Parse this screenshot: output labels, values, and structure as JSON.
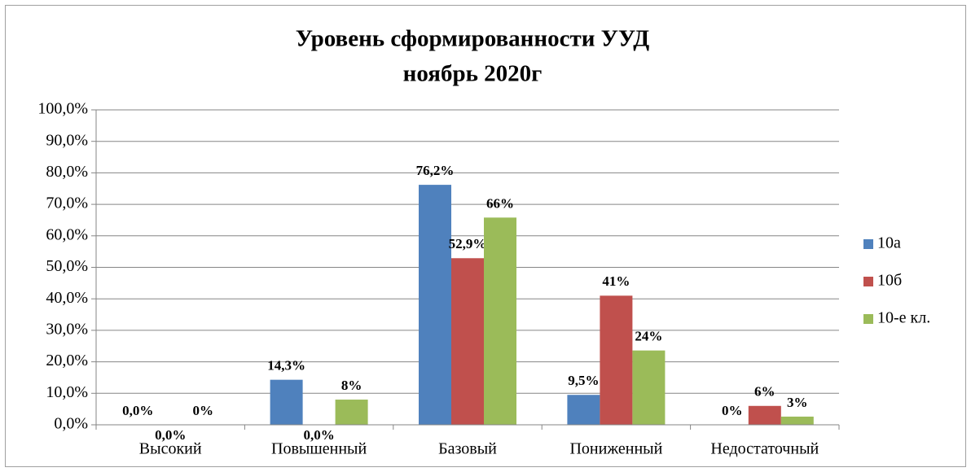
{
  "chart_data": {
    "type": "bar",
    "title": "Уровень сформированности УУД",
    "subtitle": "ноябрь 2020г",
    "categories": [
      "Высокий",
      "Повышенный",
      "Базовый",
      "Пониженный",
      "Недостаточный"
    ],
    "series": [
      {
        "name": "10а",
        "color": "#4f81bd",
        "values": [
          0,
          14.3,
          76.2,
          9.5,
          0
        ],
        "value_labels": [
          "0,0%",
          "14,3%",
          "76,2%",
          "9,5%",
          "0%"
        ]
      },
      {
        "name": "10б",
        "color": "#c0504d",
        "values": [
          0,
          0,
          52.9,
          41,
          6
        ],
        "value_labels": [
          "0,0%",
          "0,0%",
          "52,9%",
          "41%",
          "6%"
        ]
      },
      {
        "name": "10-е кл.",
        "color": "#9bbb59",
        "values": [
          0,
          8,
          65.8,
          23.6,
          2.6
        ],
        "value_labels": [
          "0%",
          "8%",
          "66%",
          "24%",
          "3%"
        ]
      }
    ],
    "ylim": [
      0,
      100
    ],
    "yticks": [
      {
        "value": 0,
        "label": "0,0%"
      },
      {
        "value": 10,
        "label": "10,0%"
      },
      {
        "value": 20,
        "label": "20,0%"
      },
      {
        "value": 30,
        "label": "30,0%"
      },
      {
        "value": 40,
        "label": "40,0%"
      },
      {
        "value": 50,
        "label": "50,0%"
      },
      {
        "value": 60,
        "label": "60,0%"
      },
      {
        "value": 70,
        "label": "70,0%"
      },
      {
        "value": 80,
        "label": "80,0%"
      },
      {
        "value": 90,
        "label": "90,0%"
      },
      {
        "value": 100,
        "label": "100,0%"
      }
    ],
    "grid": true,
    "legend": "right"
  }
}
